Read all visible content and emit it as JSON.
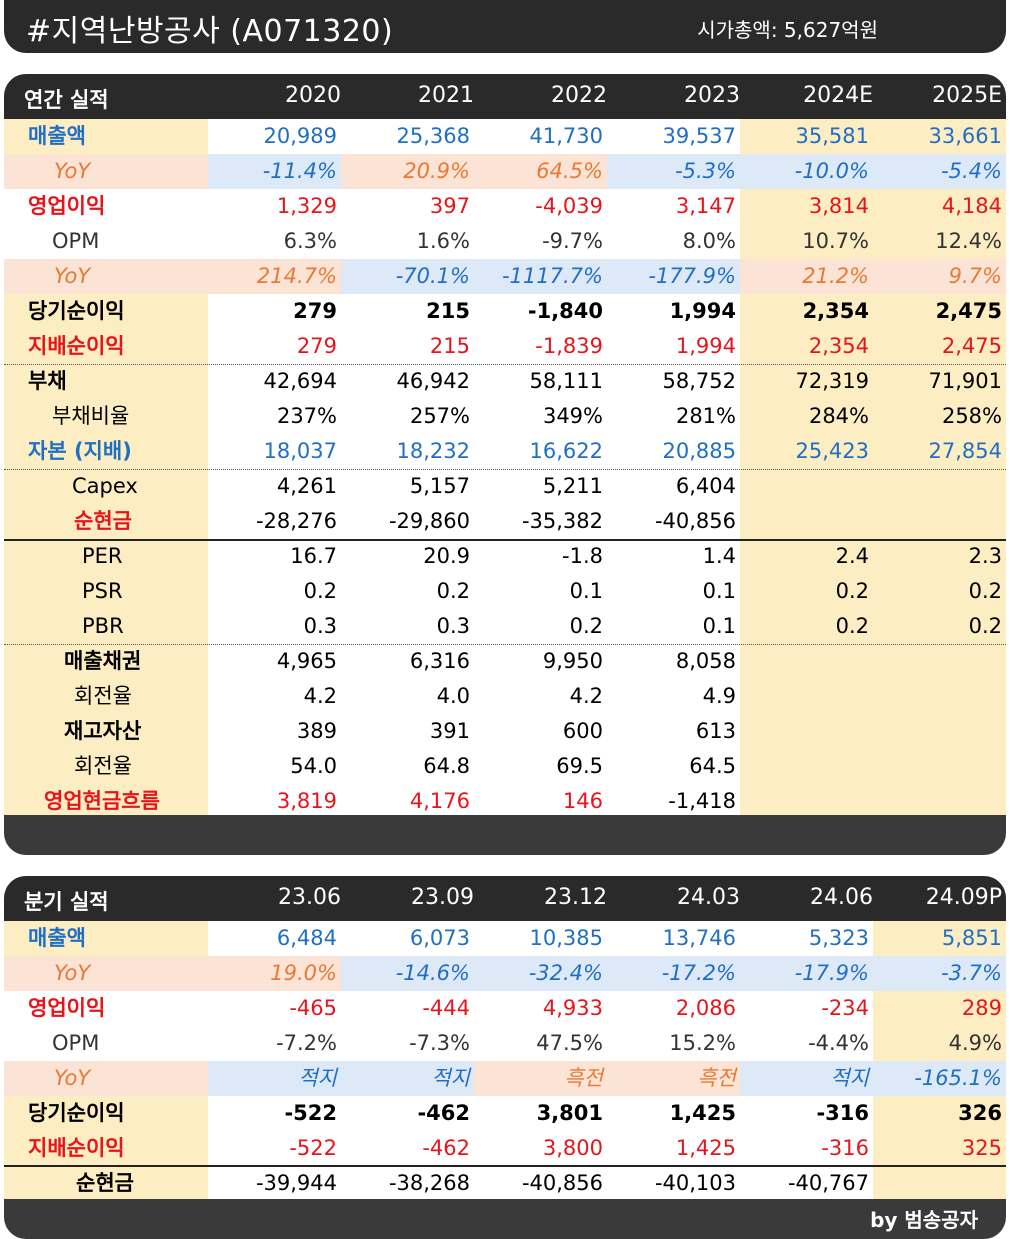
{
  "title": "#지역난방공사 (A071320)",
  "market_cap": "시가총액: 5,627억원",
  "annual": {
    "header_label": "연간 실적",
    "columns": [
      "2020",
      "2021",
      "2022",
      "2023",
      "2024E",
      "2025E"
    ],
    "rows": [
      {
        "label": "매출액",
        "values": [
          "20,989",
          "25,368",
          "41,730",
          "39,537",
          "35,581",
          "33,661"
        ]
      },
      {
        "label": "YoY",
        "values": [
          "-11.4%",
          "20.9%",
          "64.5%",
          "-5.3%",
          "-10.0%",
          "-5.4%"
        ]
      },
      {
        "label": "영업이익",
        "values": [
          "1,329",
          "397",
          "-4,039",
          "3,147",
          "3,814",
          "4,184"
        ]
      },
      {
        "label": "OPM",
        "values": [
          "6.3%",
          "1.6%",
          "-9.7%",
          "8.0%",
          "10.7%",
          "12.4%"
        ]
      },
      {
        "label": "YoY",
        "values": [
          "214.7%",
          "-70.1%",
          "-1117.7%",
          "-177.9%",
          "21.2%",
          "9.7%"
        ]
      },
      {
        "label": "당기순이익",
        "values": [
          "279",
          "215",
          "-1,840",
          "1,994",
          "2,354",
          "2,475"
        ]
      },
      {
        "label": "지배순이익",
        "values": [
          "279",
          "215",
          "-1,839",
          "1,994",
          "2,354",
          "2,475"
        ]
      },
      {
        "label": "부채",
        "values": [
          "42,694",
          "46,942",
          "58,111",
          "58,752",
          "72,319",
          "71,901"
        ]
      },
      {
        "label": "부채비율",
        "values": [
          "237%",
          "257%",
          "349%",
          "281%",
          "284%",
          "258%"
        ]
      },
      {
        "label": "자본 (지배)",
        "values": [
          "18,037",
          "18,232",
          "16,622",
          "20,885",
          "25,423",
          "27,854"
        ]
      },
      {
        "label": "Capex",
        "values": [
          "4,261",
          "5,157",
          "5,211",
          "6,404",
          "",
          ""
        ]
      },
      {
        "label": "순현금",
        "values": [
          "-28,276",
          "-29,860",
          "-35,382",
          "-40,856",
          "",
          ""
        ]
      },
      {
        "label": "PER",
        "values": [
          "16.7",
          "20.9",
          "-1.8",
          "1.4",
          "2.4",
          "2.3"
        ]
      },
      {
        "label": "PSR",
        "values": [
          "0.2",
          "0.2",
          "0.1",
          "0.1",
          "0.2",
          "0.2"
        ]
      },
      {
        "label": "PBR",
        "values": [
          "0.3",
          "0.3",
          "0.2",
          "0.1",
          "0.2",
          "0.2"
        ]
      },
      {
        "label": "매출채권",
        "values": [
          "4,965",
          "6,316",
          "9,950",
          "8,058",
          "",
          ""
        ]
      },
      {
        "label": "회전율",
        "values": [
          "4.2",
          "4.0",
          "4.2",
          "4.9",
          "",
          ""
        ]
      },
      {
        "label": "재고자산",
        "values": [
          "389",
          "391",
          "600",
          "613",
          "",
          ""
        ]
      },
      {
        "label": "회전율",
        "values": [
          "54.0",
          "64.8",
          "69.5",
          "64.5",
          "",
          ""
        ]
      },
      {
        "label": "영업현금흐름",
        "values": [
          "3,819",
          "4,176",
          "146",
          "-1,418",
          "",
          ""
        ]
      }
    ]
  },
  "quarterly": {
    "header_label": "분기 실적",
    "columns": [
      "23.06",
      "23.09",
      "23.12",
      "24.03",
      "24.06",
      "24.09P"
    ],
    "rows": [
      {
        "label": "매출액",
        "values": [
          "6,484",
          "6,073",
          "10,385",
          "13,746",
          "5,323",
          "5,851"
        ]
      },
      {
        "label": "YoY",
        "values": [
          "19.0%",
          "-14.6%",
          "-32.4%",
          "-17.2%",
          "-17.9%",
          "-3.7%"
        ]
      },
      {
        "label": "영업이익",
        "values": [
          "-465",
          "-444",
          "4,933",
          "2,086",
          "-234",
          "289"
        ]
      },
      {
        "label": "OPM",
        "values": [
          "-7.2%",
          "-7.3%",
          "47.5%",
          "15.2%",
          "-4.4%",
          "4.9%"
        ]
      },
      {
        "label": "YoY",
        "values": [
          "적지",
          "적지",
          "흑전",
          "흑전",
          "적지",
          "-165.1%"
        ]
      },
      {
        "label": "당기순이익",
        "values": [
          "-522",
          "-462",
          "3,801",
          "1,425",
          "-316",
          "326"
        ]
      },
      {
        "label": "지배순이익",
        "values": [
          "-522",
          "-462",
          "3,800",
          "1,425",
          "-316",
          "325"
        ]
      },
      {
        "label": "순현금",
        "values": [
          "-39,944",
          "-38,268",
          "-40,856",
          "-40,103",
          "-40,767",
          ""
        ]
      }
    ]
  },
  "byline": "by 범송공자"
}
